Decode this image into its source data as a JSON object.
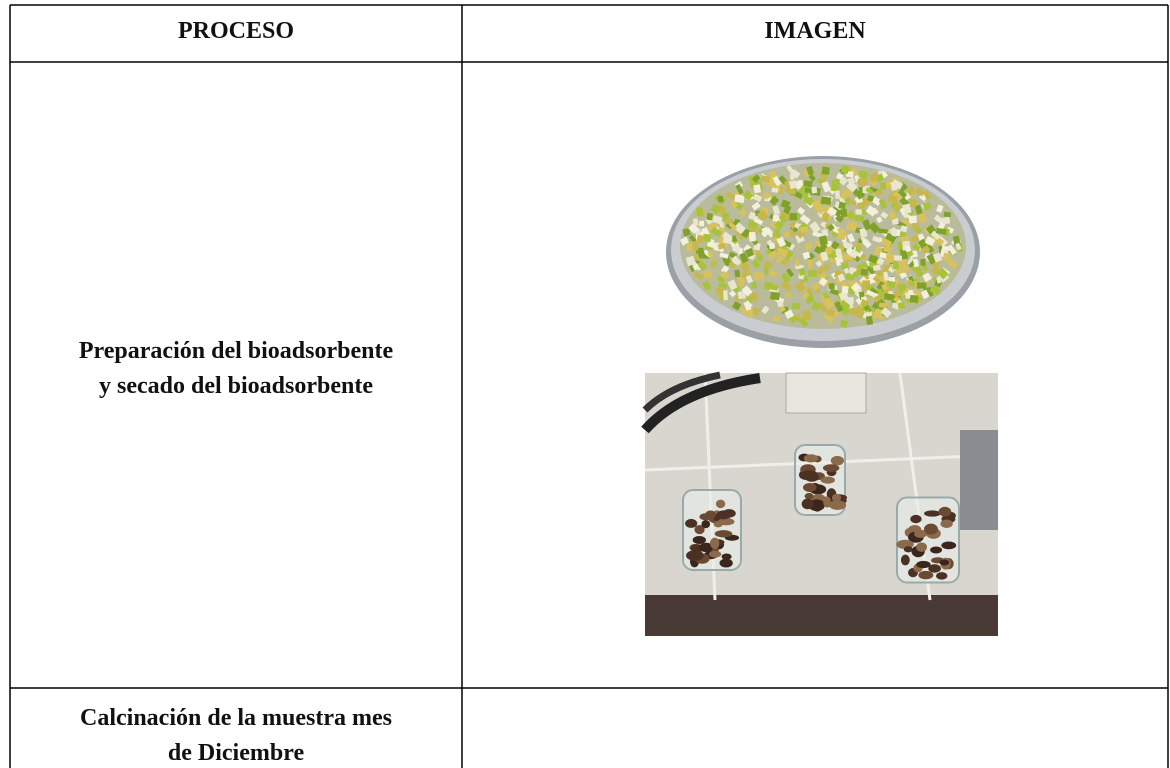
{
  "table": {
    "headers": [
      "PROCESO",
      "IMAGEN"
    ],
    "rows": [
      {
        "process": [
          "Preparación del bioadsorbente",
          "y secado del bioadsorbente"
        ]
      },
      {
        "process": [
          "Calcinación de la muestra mes",
          "de Diciembre"
        ]
      }
    ]
  }
}
